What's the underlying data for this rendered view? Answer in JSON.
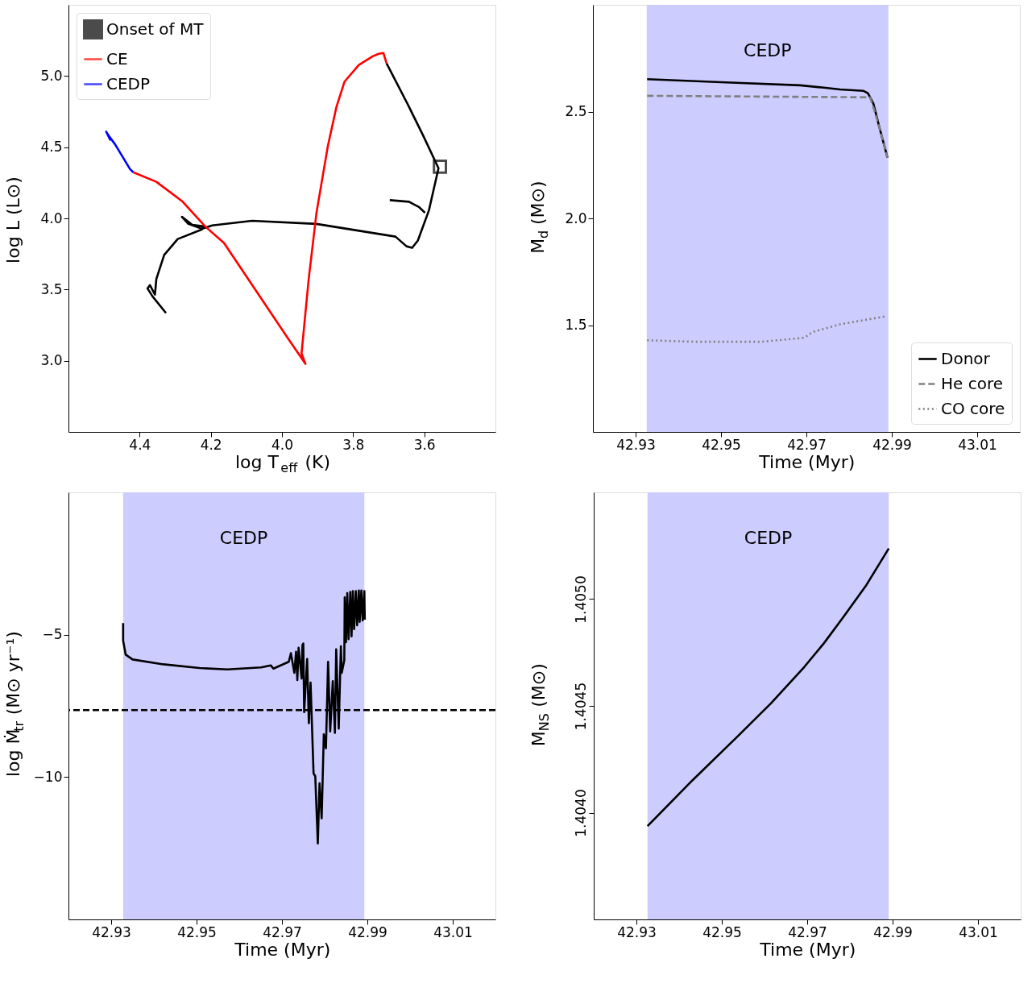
{
  "chart_data": [
    {
      "type": "line",
      "xlabel": "log T$_{eff}$ (K)",
      "ylabel": "log L (L⊙)",
      "xlim": [
        4.6,
        3.4
      ],
      "ylim": [
        2.5,
        5.5
      ],
      "xticks": [
        4.4,
        4.2,
        {
          "value": 4.0,
          "label": "4.0"
        },
        3.8,
        3.6
      ],
      "yticks": [
        {
          "value": 3.0,
          "label": "3.0"
        },
        3.5,
        {
          "value": 4.0,
          "label": "4.0"
        },
        4.5,
        {
          "value": 5.0,
          "label": "5.0"
        }
      ],
      "grid": false,
      "legend": "top left",
      "series": [
        {
          "name": "Onset of MT",
          "type": "scatter",
          "marker": "square",
          "color": "#000000",
          "x": [
            3.556
          ],
          "values": [
            4.363
          ]
        },
        {
          "color": "#000000",
          "x": [
            4.326,
            4.364,
            4.378,
            4.371,
            4.357,
            4.353,
            4.331,
            4.293,
            4.225,
            4.221,
            4.252,
            4.281,
            4.263,
            4.225,
            4.196,
            4.084,
            3.903,
            3.681,
            3.65,
            3.634,
            3.618,
            3.587,
            3.56,
            3.603,
            3.647,
            3.706
          ],
          "values": [
            3.335,
            3.453,
            3.508,
            3.531,
            3.464,
            3.575,
            3.743,
            3.855,
            3.922,
            3.944,
            3.955,
            4.011,
            3.961,
            3.927,
            3.95,
            3.983,
            3.961,
            3.872,
            3.804,
            3.793,
            3.844,
            4.056,
            4.352,
            4.581,
            4.804,
            5.089
          ]
        },
        {
          "color": "#000000",
          "x": [
            3.697,
            3.643,
            3.614,
            3.598
          ],
          "values": [
            4.128,
            4.117,
            4.078,
            4.039
          ]
        },
        {
          "name": "CE",
          "color": "#ff0000",
          "x": [
            3.706,
            3.715,
            3.728,
            3.744,
            3.784,
            3.824,
            3.847,
            3.871,
            3.903,
            3.925,
            3.945,
            3.934,
            3.983,
            4.073,
            4.163,
            4.216,
            4.279,
            4.353,
            4.418
          ],
          "values": [
            5.089,
            5.162,
            5.156,
            5.14,
            5.078,
            4.961,
            4.782,
            4.508,
            4.039,
            3.57,
            3.05,
            2.978,
            3.156,
            3.492,
            3.827,
            3.944,
            4.117,
            4.257,
            4.324
          ]
        },
        {
          "name": "CEDP",
          "color": "#0000ff",
          "x": [
            4.418,
            4.427,
            4.469,
            4.487,
            4.494,
            4.483,
            4.49
          ],
          "values": [
            4.324,
            4.346,
            4.52,
            4.581,
            4.609,
            4.553,
            4.59
          ]
        }
      ]
    },
    {
      "type": "line",
      "xlabel": "Time (Myr)",
      "ylabel": "M$_{d}$ (M⊙)",
      "xlim": [
        42.92,
        43.02
      ],
      "ylim": [
        1.0,
        3.0
      ],
      "xticks": [
        42.93,
        42.95,
        42.97,
        42.99,
        43.01
      ],
      "yticks": [
        1.5,
        {
          "value": 2.0,
          "label": "2.0"
        },
        2.5
      ],
      "grid": false,
      "legend": "bottom right",
      "bands": [
        {
          "axis": "x",
          "from": 42.9326,
          "to": 42.9892,
          "label": "CEDP",
          "color": "#ccccff"
        }
      ],
      "series": [
        {
          "name": "Donor",
          "color": "#000000",
          "line_style": "solid",
          "x": [
            42.9327,
            42.95,
            42.9686,
            42.9741,
            42.9779,
            42.9834,
            42.9844,
            42.9857,
            42.9871,
            42.989
          ],
          "values": [
            2.652,
            2.638,
            2.623,
            2.612,
            2.604,
            2.597,
            2.586,
            2.537,
            2.426,
            2.284
          ]
        },
        {
          "name": "He core",
          "color": "#808080",
          "line_style": "dashed",
          "x": [
            42.9327,
            42.9849,
            42.9857,
            42.9871,
            42.989
          ],
          "values": [
            2.574,
            2.567,
            2.519,
            2.426,
            2.284
          ]
        },
        {
          "name": "CO core",
          "color": "#808080",
          "line_style": "dotted",
          "x": [
            42.9327,
            42.9444,
            42.9593,
            42.9695,
            42.9714,
            42.9779,
            42.9885
          ],
          "values": [
            1.429,
            1.422,
            1.422,
            1.441,
            1.467,
            1.504,
            1.541
          ]
        }
      ]
    },
    {
      "type": "line",
      "xlabel": "Time (Myr)",
      "ylabel": "log Ṁ$_{tr}$ (M⊙ yr⁻¹)",
      "xlim": [
        42.92,
        43.02
      ],
      "ylim": [
        -15,
        0
      ],
      "xticks": [
        42.93,
        42.95,
        42.97,
        42.99,
        43.01
      ],
      "yticks": [
        {
          "value": -10,
          "label": "−10"
        },
        {
          "value": -5,
          "label": "−5"
        }
      ],
      "grid": false,
      "bands": [
        {
          "axis": "x",
          "from": 42.9328,
          "to": 42.9893,
          "label": "CEDP",
          "color": "#ccccff"
        }
      ],
      "ref_lines": [
        {
          "axis": "y",
          "value": -7.65,
          "color": "#000000",
          "line_style": "dashed"
        }
      ],
      "series": [
        {
          "color": "#000000",
          "x": [
            42.9328,
            42.9328,
            42.9334,
            42.935,
            42.9422,
            42.9507,
            42.9572,
            42.9651,
            42.9674,
            42.968,
            42.9716,
            42.9721,
            42.9729,
            42.9733,
            42.9736,
            42.9739,
            42.9746,
            42.9748,
            42.975,
            42.9752,
            42.9759,
            42.9763,
            42.9767,
            42.9774,
            42.9778,
            42.9784,
            42.9788,
            42.9793,
            42.9798,
            42.9803,
            42.9808,
            42.9813,
            42.9819,
            42.9824,
            42.9827,
            42.9833,
            42.9838,
            42.984,
            42.9846,
            42.9847,
            42.985,
            42.9853,
            42.9856,
            42.986,
            42.9863,
            42.9866,
            42.9869,
            42.9873,
            42.9876,
            42.988,
            42.9882,
            42.9886,
            42.9889,
            42.9893,
            42.9894
          ],
          "values": [
            -4.59,
            -5.21,
            -5.7,
            -5.87,
            -6.04,
            -6.17,
            -6.22,
            -6.15,
            -6.08,
            -6.19,
            -5.95,
            -5.65,
            -6.34,
            -5.6,
            -6.59,
            -5.46,
            -6.54,
            -5.36,
            -5.31,
            -7.72,
            -5.85,
            -8.11,
            -6.68,
            -9.87,
            -9.97,
            -12.33,
            -10.22,
            -11.45,
            -8.5,
            -8.99,
            -5.95,
            -8.4,
            -6.63,
            -8.45,
            -5.51,
            -8.3,
            -5.41,
            -6.34,
            -5.9,
            -3.69,
            -5.26,
            -3.54,
            -5.16,
            -3.5,
            -5.06,
            -3.47,
            -4.8,
            -3.47,
            -4.67,
            -3.45,
            -4.55,
            -3.45,
            -4.5,
            -3.47,
            -4.47
          ]
        }
      ]
    },
    {
      "type": "line",
      "xlabel": "Time (Myr)",
      "ylabel": "M$_{NS}$ (M⊙)",
      "xlim": [
        42.92,
        43.02
      ],
      "ylim": [
        1.4035,
        1.4055
      ],
      "xticks": [
        42.93,
        42.95,
        42.97,
        42.99,
        43.01
      ],
      "yticks": [
        {
          "value": 1.404,
          "label": "1.4040"
        },
        1.4045,
        {
          "value": 1.405,
          "label": "1.4050"
        }
      ],
      "grid": false,
      "bands": [
        {
          "axis": "x",
          "from": 42.9326,
          "to": 42.9891,
          "label": "CEDP",
          "color": "#ccccff"
        }
      ],
      "series": [
        {
          "color": "#000000",
          "x": [
            42.9326,
            42.9432,
            42.9536,
            42.9615,
            42.9693,
            42.9739,
            42.9785,
            42.9837,
            42.9891
          ],
          "values": [
            1.403937,
            1.404153,
            1.404355,
            1.404512,
            1.404682,
            1.404793,
            1.404917,
            1.405061,
            1.405237
          ]
        }
      ]
    }
  ]
}
